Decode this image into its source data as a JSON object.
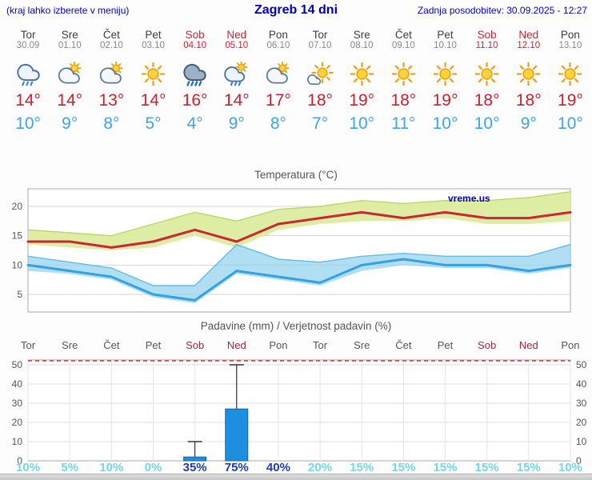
{
  "header": {
    "note": "(kraj lahko izberete v meniju)",
    "title": "Zagreb 14 dni",
    "updated": "Zadnja posodobitev: 30.09.2025 - 12:27"
  },
  "days": [
    {
      "name": "Tor",
      "date": "30.09",
      "weekend": false,
      "icon": "rain-cloud",
      "tmax": "14°",
      "tmin": "10°",
      "precip_prob": "10%",
      "prob_emph": false
    },
    {
      "name": "Sre",
      "date": "01.10",
      "weekend": false,
      "icon": "sun-cloud",
      "tmax": "14°",
      "tmin": "9°",
      "precip_prob": "5%",
      "prob_emph": false
    },
    {
      "name": "Čet",
      "date": "02.10",
      "weekend": false,
      "icon": "sun-cloud",
      "tmax": "13°",
      "tmin": "8°",
      "precip_prob": "10%",
      "prob_emph": false
    },
    {
      "name": "Pet",
      "date": "03.10",
      "weekend": false,
      "icon": "sunny",
      "tmax": "14°",
      "tmin": "5°",
      "precip_prob": "0%",
      "prob_emph": false
    },
    {
      "name": "Sob",
      "date": "04.10",
      "weekend": true,
      "icon": "heavy-rain-cloud",
      "tmax": "16°",
      "tmin": "4°",
      "precip_prob": "35%",
      "prob_emph": true
    },
    {
      "name": "Ned",
      "date": "05.10",
      "weekend": true,
      "icon": "sun-rain-cloud",
      "tmax": "14°",
      "tmin": "9°",
      "precip_prob": "75%",
      "prob_emph": true
    },
    {
      "name": "Pon",
      "date": "06.10",
      "weekend": false,
      "icon": "sun-cloud",
      "tmax": "17°",
      "tmin": "8°",
      "precip_prob": "40%",
      "prob_emph": true
    },
    {
      "name": "Tor",
      "date": "07.10",
      "weekend": false,
      "icon": "mostly-sunny",
      "tmax": "18°",
      "tmin": "7°",
      "precip_prob": "20%",
      "prob_emph": false
    },
    {
      "name": "Sre",
      "date": "08.10",
      "weekend": false,
      "icon": "sunny",
      "tmax": "19°",
      "tmin": "10°",
      "precip_prob": "15%",
      "prob_emph": false
    },
    {
      "name": "Čet",
      "date": "09.10",
      "weekend": false,
      "icon": "sunny",
      "tmax": "18°",
      "tmin": "11°",
      "precip_prob": "15%",
      "prob_emph": false
    },
    {
      "name": "Pet",
      "date": "10.10",
      "weekend": false,
      "icon": "sunny",
      "tmax": "19°",
      "tmin": "10°",
      "precip_prob": "15%",
      "prob_emph": false
    },
    {
      "name": "Sob",
      "date": "11.10",
      "weekend": true,
      "icon": "sunny",
      "tmax": "18°",
      "tmin": "10°",
      "precip_prob": "15%",
      "prob_emph": false
    },
    {
      "name": "Ned",
      "date": "12.10",
      "weekend": true,
      "icon": "sunny",
      "tmax": "18°",
      "tmin": "9°",
      "precip_prob": "15%",
      "prob_emph": false
    },
    {
      "name": "Pon",
      "date": "13.10",
      "weekend": false,
      "icon": "sunny",
      "tmax": "19°",
      "tmin": "10°",
      "precip_prob": "10%",
      "prob_emph": false
    }
  ],
  "chart_data": [
    {
      "type": "line",
      "title": "Temperatura (°C)",
      "watermark": "vreme.us",
      "x_labels": [
        "Tor",
        "Sre",
        "Čet",
        "Pet",
        "Sob",
        "Ned",
        "Pon",
        "Tor",
        "Sre",
        "Čet",
        "Pet",
        "Sob",
        "Ned",
        "Pon"
      ],
      "ylim": [
        2,
        23
      ],
      "yticks": [
        5,
        10,
        15,
        20
      ],
      "grid": "horizontal",
      "series": [
        {
          "name": "max-temp",
          "color": "#cc2533",
          "values": [
            14,
            14,
            13,
            14,
            16,
            14,
            17,
            18,
            19,
            18,
            19,
            18,
            18,
            19
          ]
        },
        {
          "name": "min-temp",
          "color": "#35a1e0",
          "values": [
            10,
            9,
            8,
            5,
            4,
            9,
            8,
            7,
            10,
            11,
            10,
            10,
            9,
            10
          ]
        }
      ],
      "bands": [
        {
          "name": "max-temp-range",
          "color": "#dcec9f",
          "edge": "#bcd56c",
          "opacity": 0.95,
          "upper": [
            16,
            15.5,
            15,
            17,
            19,
            17.5,
            19.5,
            20,
            21,
            20.5,
            21,
            21,
            21.5,
            22.5
          ],
          "lower": [
            13.5,
            13,
            12.5,
            13,
            15,
            13,
            16,
            17,
            17.5,
            17.5,
            18,
            17,
            17,
            17.5
          ]
        },
        {
          "name": "min-temp-range",
          "color": "#8fd0ee",
          "edge": "#62bce8",
          "opacity": 0.7,
          "upper": [
            11.5,
            10.5,
            9.5,
            6.5,
            6.5,
            13.5,
            11,
            10.5,
            11.5,
            12,
            11.5,
            11.5,
            11.5,
            13.5
          ],
          "lower": [
            9,
            8.5,
            7.5,
            4.5,
            3.5,
            8.5,
            7.5,
            6.5,
            9,
            10,
            9.5,
            9.5,
            8.5,
            9.5
          ]
        }
      ]
    },
    {
      "type": "bar",
      "title": "Padavine (mm) / Verjetnost padavin (%)",
      "ylim": [
        0,
        52.5
      ],
      "yticks": [
        0,
        10,
        20,
        30,
        40,
        50
      ],
      "bar_color": "#1e8ede",
      "values": [
        0,
        0,
        0,
        0,
        2,
        27,
        0,
        0,
        0,
        0,
        0,
        0,
        0,
        0
      ],
      "whisker_max": [
        0,
        0,
        0,
        0,
        10,
        50,
        0,
        0,
        0,
        0,
        0,
        0,
        0,
        0
      ],
      "prob_labels": [
        "10%",
        "5%",
        "10%",
        "0%",
        "35%",
        "75%",
        "40%",
        "20%",
        "15%",
        "15%",
        "15%",
        "15%",
        "15%",
        "10%"
      ]
    }
  ],
  "colors": {
    "accent_blue": "#0000cc",
    "max_temp_red": "#cc1f2d",
    "min_temp_blue": "#3da4ea",
    "weekend_red": "#cc2233",
    "prob_light": "#74d6e6",
    "prob_strong": "#1a3ea6",
    "bar_blue": "#1e8ede",
    "limit_line_red": "#e23333"
  }
}
